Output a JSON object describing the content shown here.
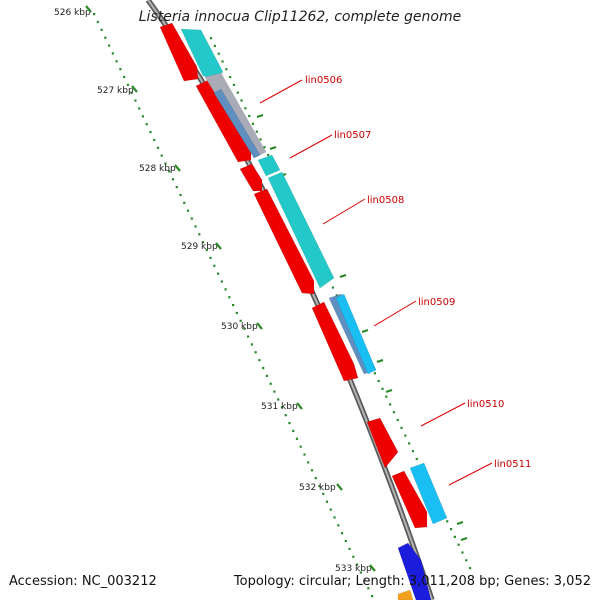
{
  "title": "Listeria innocua Clip11262, complete genome",
  "footer": {
    "accession": "Accession: NC_003212",
    "summary": "Topology: circular; Length: 3,011,208 bp; Genes: 3,052"
  },
  "colors": {
    "backbone": "#8c8c8c",
    "cds": "#ee0000",
    "tick": "#2a8a2a",
    "label_line": "#dd0000",
    "cyan": "#23c9c9",
    "light_blue": "#19bff2",
    "steel": "#5f8fc0",
    "grey": "#a9acb6",
    "blue": "#1c1cdd",
    "orange": "#f3a020"
  },
  "ruler": [
    {
      "label": "526 kbp"
    },
    {
      "label": "527 kbp"
    },
    {
      "label": "528 kbp"
    },
    {
      "label": "529 kbp"
    },
    {
      "label": "530 kbp"
    },
    {
      "label": "531 kbp"
    },
    {
      "label": "532 kbp"
    },
    {
      "label": "533 kbp"
    }
  ],
  "genes": [
    {
      "label": "lin0506"
    },
    {
      "label": "lin0507"
    },
    {
      "label": "lin0508"
    },
    {
      "label": "lin0509"
    },
    {
      "label": "lin0510"
    },
    {
      "label": "lin0511"
    }
  ]
}
